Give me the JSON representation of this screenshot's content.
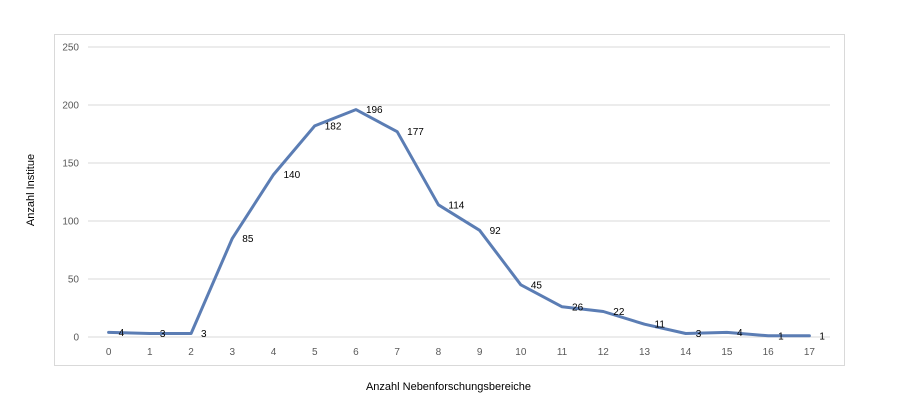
{
  "chart_data": {
    "type": "line",
    "xlabel": "Anzahl Nebenforschungsbereiche",
    "ylabel": "Anzahl Institue",
    "ylim": [
      0,
      250
    ],
    "yticks": [
      0,
      50,
      100,
      150,
      200,
      250
    ],
    "categories": [
      "0",
      "1",
      "2",
      "3",
      "4",
      "5",
      "6",
      "7",
      "8",
      "9",
      "10",
      "11",
      "12",
      "13",
      "14",
      "15",
      "16",
      "17"
    ],
    "series": [
      {
        "values": [
          4,
          3,
          3,
          85,
          140,
          182,
          196,
          177,
          114,
          92,
          45,
          26,
          22,
          11,
          3,
          4,
          1,
          1
        ]
      }
    ],
    "grid": true,
    "legend": "none",
    "data_labels": true,
    "colors": {
      "line": "#5b7db4",
      "grid": "#d9d9d9",
      "tick_text": "#595959"
    }
  }
}
